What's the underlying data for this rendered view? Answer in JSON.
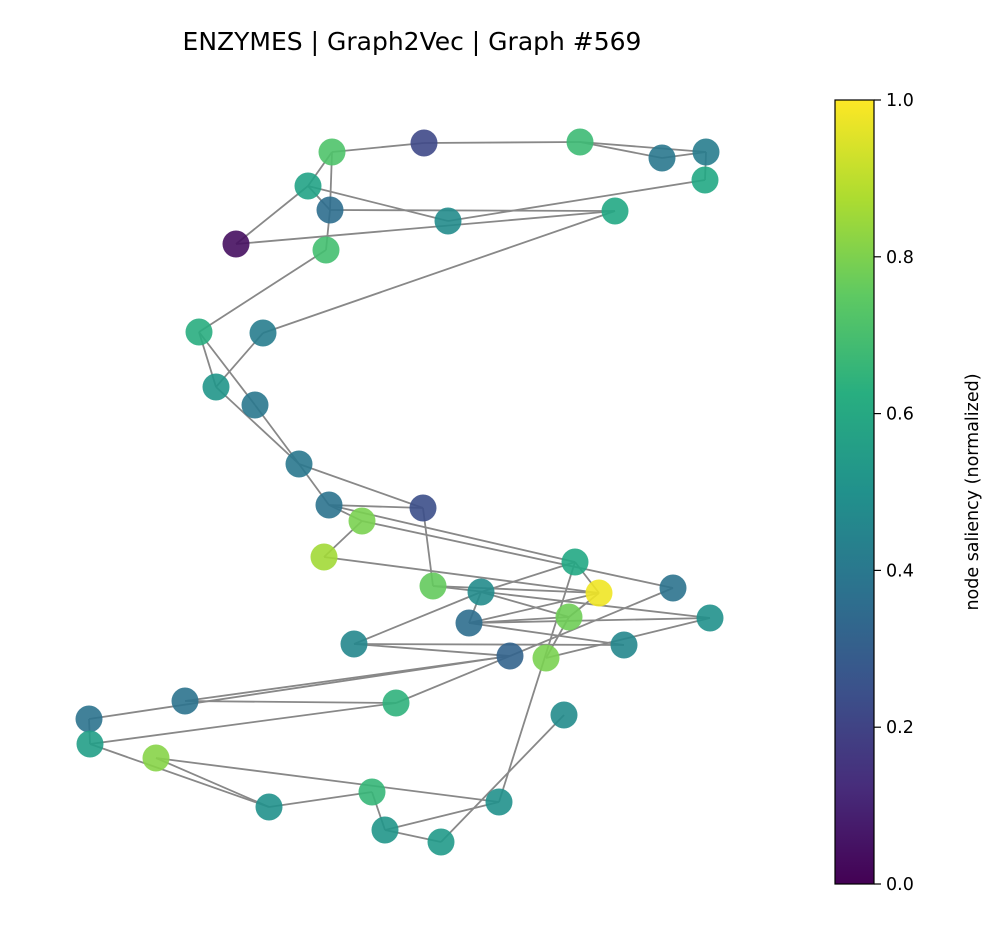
{
  "title": "ENZYMES | Graph2Vec | Graph #569",
  "colorbar": {
    "label": "node saliency (normalized)",
    "colormap": "viridis",
    "range": [
      0.0,
      1.0
    ],
    "ticks": [
      "0.0",
      "0.2",
      "0.4",
      "0.6",
      "0.8",
      "1.0"
    ]
  },
  "graph": {
    "node_count": 47,
    "saliency": [
      0.72,
      0.22,
      0.68,
      0.4,
      0.58,
      0.36,
      0.42,
      0.6,
      0.04,
      0.48,
      0.7,
      0.6,
      0.62,
      0.42,
      0.52,
      0.4,
      0.4,
      0.38,
      0.24,
      0.8,
      0.86,
      0.6,
      0.76,
      0.98,
      0.48,
      0.38,
      0.78,
      0.5,
      0.36,
      0.46,
      0.32,
      0.8,
      0.46,
      0.38,
      0.64,
      0.38,
      0.56,
      0.82,
      0.48,
      0.5,
      0.66,
      0.5,
      0.52,
      0.54,
      0.56,
      0.6,
      0.58
    ],
    "edges": [
      [
        0,
        1
      ],
      [
        1,
        2
      ],
      [
        2,
        3
      ],
      [
        2,
        6
      ],
      [
        3,
        6
      ],
      [
        0,
        4
      ],
      [
        0,
        5
      ],
      [
        4,
        5
      ],
      [
        4,
        8
      ],
      [
        4,
        9
      ],
      [
        5,
        10
      ],
      [
        5,
        11
      ],
      [
        8,
        11
      ],
      [
        9,
        7
      ],
      [
        6,
        7
      ],
      [
        10,
        12
      ],
      [
        11,
        13
      ],
      [
        12,
        14
      ],
      [
        12,
        15
      ],
      [
        13,
        14
      ],
      [
        14,
        16
      ],
      [
        15,
        16
      ],
      [
        16,
        17
      ],
      [
        16,
        18
      ],
      [
        17,
        19
      ],
      [
        17,
        18
      ],
      [
        17,
        21
      ],
      [
        18,
        22
      ],
      [
        19,
        20
      ],
      [
        19,
        25
      ],
      [
        20,
        23
      ],
      [
        21,
        23
      ],
      [
        21,
        24
      ],
      [
        22,
        23
      ],
      [
        22,
        27
      ],
      [
        23,
        26
      ],
      [
        24,
        26
      ],
      [
        24,
        28
      ],
      [
        24,
        29
      ],
      [
        23,
        28
      ],
      [
        26,
        28
      ],
      [
        25,
        30
      ],
      [
        26,
        31
      ],
      [
        27,
        31
      ],
      [
        28,
        32
      ],
      [
        28,
        27
      ],
      [
        29,
        32
      ],
      [
        29,
        30
      ],
      [
        30,
        33
      ],
      [
        30,
        34
      ],
      [
        30,
        35
      ],
      [
        33,
        34
      ],
      [
        34,
        36
      ],
      [
        35,
        36
      ],
      [
        36,
        39
      ],
      [
        39,
        40
      ],
      [
        39,
        37
      ],
      [
        40,
        42
      ],
      [
        41,
        42
      ],
      [
        41,
        37
      ],
      [
        42,
        43
      ],
      [
        43,
        38
      ],
      [
        38,
        44
      ],
      [
        38,
        45
      ],
      [
        38,
        46
      ],
      [
        44,
        46
      ],
      [
        45,
        46
      ],
      [
        21,
        41
      ]
    ]
  }
}
